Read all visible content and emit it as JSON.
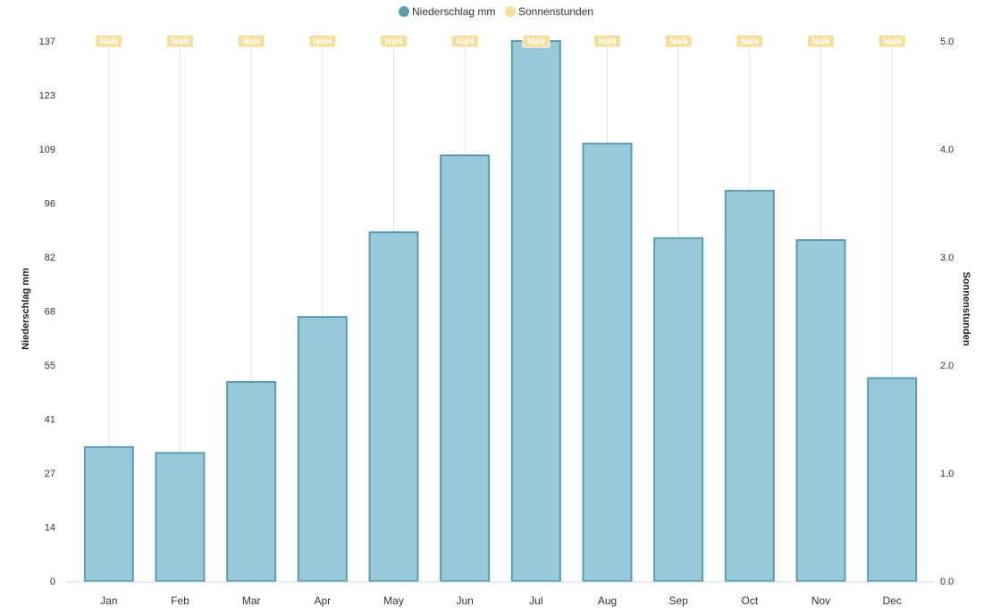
{
  "chart_data": {
    "type": "bar",
    "categories": [
      "Jan",
      "Feb",
      "Mar",
      "Apr",
      "May",
      "Jun",
      "Jul",
      "Aug",
      "Sep",
      "Oct",
      "Nov",
      "Dec"
    ],
    "series": [
      {
        "name": "Niederschlag mm",
        "type": "bar",
        "axis": "left",
        "color": "#5a9db0",
        "fill": "#97c9d9",
        "values": [
          34,
          32.5,
          50.5,
          67,
          88.5,
          108,
          137,
          111,
          87,
          99,
          86.5,
          51.5
        ]
      },
      {
        "name": "Sonnenstunden",
        "type": "line",
        "axis": "right",
        "color": "#f6df9b",
        "values": [
          null,
          null,
          null,
          null,
          null,
          null,
          null,
          null,
          null,
          null,
          null,
          null
        ],
        "data_labels": [
          "NaN",
          "NaN",
          "NaN",
          "NaN",
          "NaN",
          "NaN",
          "NaN",
          "NaN",
          "NaN",
          "NaN",
          "NaN",
          "NaN"
        ]
      }
    ],
    "y_left": {
      "label": "Niederschlag mm",
      "ticks": [
        "0",
        "14",
        "27",
        "41",
        "55",
        "68",
        "82",
        "96",
        "109",
        "123",
        "137"
      ],
      "range": [
        0,
        137
      ]
    },
    "y_right": {
      "label": "Sonnenstunden",
      "ticks": [
        "0.0",
        "1.0",
        "2.0",
        "3.0",
        "4.0",
        "5.0"
      ],
      "range": [
        0,
        5
      ]
    },
    "legend_position": "top-center",
    "grid": "vertical lines at categories"
  }
}
